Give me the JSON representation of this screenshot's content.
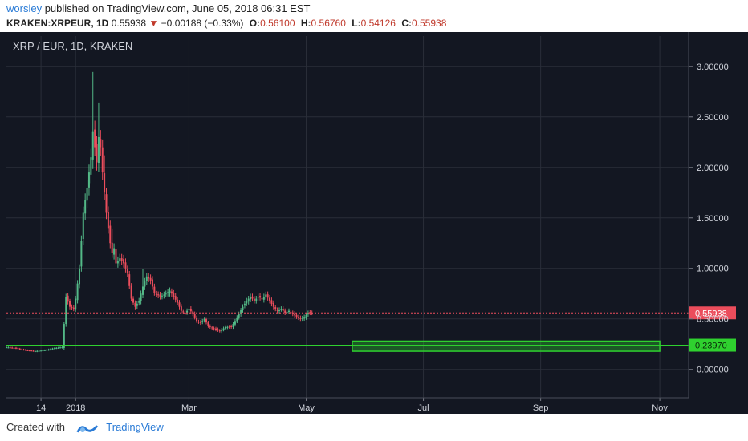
{
  "header": {
    "author": "worsley",
    "published_text": "published on TradingView.com, June 05, 2018 06:31 EST",
    "symbol": "KRAKEN:XRPEUR, 1D",
    "last": "0.55938",
    "change_arrow": "▼",
    "change": "−0.00188 (−0.33%)",
    "o_label": "O:",
    "o_value": "0.56100",
    "h_label": "H:",
    "h_value": "0.56760",
    "l_label": "L:",
    "l_value": "0.54126",
    "c_label": "C:",
    "c_value": "0.55938"
  },
  "footer": {
    "created_with": "Created with",
    "brand": "TradingView"
  },
  "colors": {
    "background": "#131722",
    "up": "#53b987",
    "down": "#eb4d5c",
    "grid": "#2a2e39",
    "price_line": "#eb4d5c",
    "support": "#2fd12f",
    "axis_text": "#d1d4dc"
  },
  "chart_data": {
    "type": "candlestick",
    "title": "XRP / EUR, 1D, KRAKEN",
    "y_ticks": [
      "3.00000",
      "2.50000",
      "2.00000",
      "1.50000",
      "1.00000",
      "0.50000",
      "0.00000"
    ],
    "y_tick_values": [
      3.0,
      2.5,
      2.0,
      1.5,
      1.0,
      0.5,
      0.0
    ],
    "ylim": [
      -0.28,
      3.3
    ],
    "x_ticks": [
      "14",
      "2018",
      "Mar",
      "May",
      "Jul",
      "Sep",
      "Nov"
    ],
    "x_tick_days": [
      13,
      31,
      90,
      151,
      212,
      273,
      335
    ],
    "x_range_days": [
      -5,
      350
    ],
    "last_price_label": "0.55938",
    "last_price": 0.55938,
    "support_label": "0.23970",
    "support_level": 0.2397,
    "support_box": {
      "day_start": 175,
      "day_end": 335,
      "low": 0.18,
      "high": 0.28
    },
    "close_path": [
      [
        -5,
        0.22
      ],
      [
        0,
        0.21
      ],
      [
        5,
        0.19
      ],
      [
        10,
        0.18
      ],
      [
        15,
        0.19
      ],
      [
        20,
        0.21
      ],
      [
        24,
        0.22
      ],
      [
        25,
        0.45
      ],
      [
        26,
        0.72
      ],
      [
        28,
        0.62
      ],
      [
        30,
        0.6
      ],
      [
        31,
        0.7
      ],
      [
        33,
        1.0
      ],
      [
        35,
        1.55
      ],
      [
        37,
        1.8
      ],
      [
        39,
        2.1
      ],
      [
        40,
        2.35
      ],
      [
        41,
        2.2
      ],
      [
        42,
        2.05
      ],
      [
        43,
        2.3
      ],
      [
        44,
        2.2
      ],
      [
        45,
        1.95
      ],
      [
        46,
        1.75
      ],
      [
        47,
        1.55
      ],
      [
        48,
        1.4
      ],
      [
        49,
        1.25
      ],
      [
        50,
        1.15
      ],
      [
        51,
        1.2
      ],
      [
        52,
        1.05
      ],
      [
        54,
        1.1
      ],
      [
        56,
        1.05
      ],
      [
        58,
        0.95
      ],
      [
        60,
        0.7
      ],
      [
        62,
        0.62
      ],
      [
        64,
        0.68
      ],
      [
        66,
        0.82
      ],
      [
        68,
        0.92
      ],
      [
        70,
        0.88
      ],
      [
        72,
        0.76
      ],
      [
        75,
        0.72
      ],
      [
        78,
        0.75
      ],
      [
        80,
        0.78
      ],
      [
        82,
        0.72
      ],
      [
        84,
        0.66
      ],
      [
        86,
        0.58
      ],
      [
        88,
        0.56
      ],
      [
        90,
        0.6
      ],
      [
        92,
        0.55
      ],
      [
        94,
        0.48
      ],
      [
        96,
        0.46
      ],
      [
        98,
        0.5
      ],
      [
        100,
        0.43
      ],
      [
        103,
        0.4
      ],
      [
        106,
        0.38
      ],
      [
        109,
        0.42
      ],
      [
        112,
        0.42
      ],
      [
        114,
        0.48
      ],
      [
        116,
        0.55
      ],
      [
        118,
        0.62
      ],
      [
        120,
        0.68
      ],
      [
        122,
        0.72
      ],
      [
        124,
        0.68
      ],
      [
        126,
        0.72
      ],
      [
        128,
        0.7
      ],
      [
        130,
        0.74
      ],
      [
        132,
        0.68
      ],
      [
        134,
        0.62
      ],
      [
        136,
        0.58
      ],
      [
        138,
        0.6
      ],
      [
        140,
        0.56
      ],
      [
        142,
        0.58
      ],
      [
        144,
        0.55
      ],
      [
        146,
        0.52
      ],
      [
        148,
        0.5
      ],
      [
        150,
        0.52
      ],
      [
        152,
        0.56
      ],
      [
        154,
        0.55938
      ]
    ],
    "spike_highs": [
      [
        40,
        2.85
      ],
      [
        43,
        2.55
      ],
      [
        46,
        2.05
      ],
      [
        50,
        1.35
      ],
      [
        66,
        0.96
      ]
    ]
  }
}
